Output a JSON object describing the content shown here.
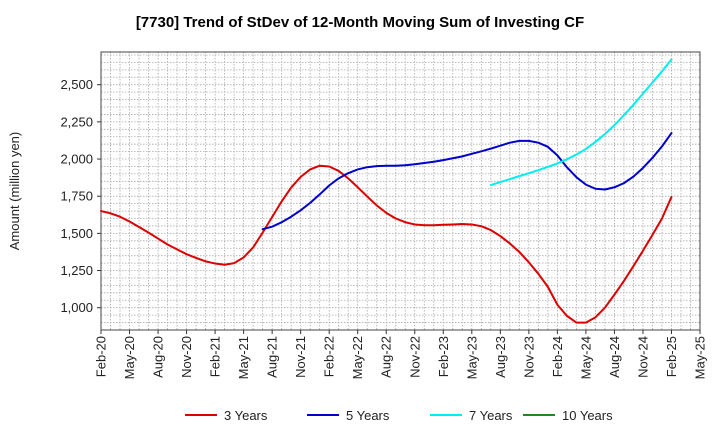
{
  "chart_data": {
    "type": "line",
    "title": "[7730]  Trend of StDev of 12-Month Moving Sum of Investing CF",
    "ylabel": "Amount (million yen)",
    "xlabel": "",
    "ylim": [
      850,
      2720
    ],
    "yticks": [
      1000,
      1250,
      1500,
      1750,
      2000,
      2250,
      2500
    ],
    "ytick_labels": [
      "1,000",
      "1,250",
      "1,500",
      "1,750",
      "2,000",
      "2,250",
      "2,500"
    ],
    "x_start": "Feb-20",
    "x_end": "May-25",
    "xticks": [
      "Feb-20",
      "May-20",
      "Aug-20",
      "Nov-20",
      "Feb-21",
      "May-21",
      "Aug-21",
      "Nov-21",
      "Feb-22",
      "May-22",
      "Aug-22",
      "Nov-22",
      "Feb-23",
      "May-23",
      "Aug-23",
      "Nov-23",
      "Feb-24",
      "May-24",
      "Aug-24",
      "Nov-24",
      "Feb-25",
      "May-25"
    ],
    "grid": true,
    "legend_position": "bottom",
    "series": [
      {
        "name": "3 Years",
        "color": "#dd0000",
        "x": [
          "Feb-20",
          "Mar-20",
          "Apr-20",
          "May-20",
          "Jun-20",
          "Jul-20",
          "Aug-20",
          "Sep-20",
          "Oct-20",
          "Nov-20",
          "Dec-20",
          "Jan-21",
          "Feb-21",
          "Mar-21",
          "Apr-21",
          "May-21",
          "Jun-21",
          "Jul-21",
          "Aug-21",
          "Sep-21",
          "Oct-21",
          "Nov-21",
          "Dec-21",
          "Jan-22",
          "Feb-22",
          "Mar-22",
          "Apr-22",
          "May-22",
          "Jun-22",
          "Jul-22",
          "Aug-22",
          "Sep-22",
          "Oct-22",
          "Nov-22",
          "Dec-22",
          "Jan-23",
          "Feb-23",
          "Mar-23",
          "Apr-23",
          "May-23",
          "Jun-23",
          "Jul-23",
          "Aug-23",
          "Sep-23",
          "Oct-23",
          "Nov-23",
          "Dec-23",
          "Jan-24",
          "Feb-24",
          "Mar-24",
          "Apr-24",
          "May-24",
          "Jun-24",
          "Jul-24",
          "Aug-24",
          "Sep-24",
          "Oct-24",
          "Nov-24",
          "Dec-24",
          "Jan-25",
          "Feb-25"
        ],
        "values": [
          1650,
          1635,
          1612,
          1580,
          1543,
          1505,
          1465,
          1425,
          1392,
          1360,
          1335,
          1312,
          1297,
          1289,
          1300,
          1338,
          1405,
          1505,
          1610,
          1715,
          1808,
          1880,
          1930,
          1955,
          1950,
          1920,
          1870,
          1810,
          1748,
          1688,
          1638,
          1600,
          1575,
          1560,
          1555,
          1555,
          1558,
          1560,
          1563,
          1560,
          1548,
          1522,
          1482,
          1432,
          1375,
          1305,
          1228,
          1140,
          1020,
          945,
          900,
          900,
          935,
          1000,
          1088,
          1180,
          1280,
          1383,
          1490,
          1600,
          1745
        ]
      },
      {
        "name": "5 Years",
        "color": "#0000cc",
        "x": [
          "Jul-21",
          "Aug-21",
          "Sep-21",
          "Oct-21",
          "Nov-21",
          "Dec-21",
          "Jan-22",
          "Feb-22",
          "Mar-22",
          "Apr-22",
          "May-22",
          "Jun-22",
          "Jul-22",
          "Aug-22",
          "Sep-22",
          "Oct-22",
          "Nov-22",
          "Dec-22",
          "Jan-23",
          "Feb-23",
          "Mar-23",
          "Apr-23",
          "May-23",
          "Jun-23",
          "Jul-23",
          "Aug-23",
          "Sep-23",
          "Oct-23",
          "Nov-23",
          "Dec-23",
          "Jan-24",
          "Feb-24",
          "Mar-24",
          "Apr-24",
          "May-24",
          "Jun-24",
          "Jul-24",
          "Aug-24",
          "Sep-24",
          "Oct-24",
          "Nov-24",
          "Dec-24",
          "Jan-25",
          "Feb-25"
        ],
        "values": [
          1528,
          1545,
          1575,
          1612,
          1655,
          1705,
          1762,
          1822,
          1870,
          1905,
          1930,
          1945,
          1952,
          1955,
          1955,
          1958,
          1965,
          1973,
          1982,
          1993,
          2005,
          2018,
          2035,
          2052,
          2070,
          2090,
          2110,
          2122,
          2122,
          2110,
          2082,
          2025,
          1945,
          1878,
          1828,
          1800,
          1795,
          1810,
          1838,
          1882,
          1940,
          2008,
          2085,
          2175
        ]
      },
      {
        "name": "7 Years",
        "color": "#00eeee",
        "x": [
          "Jul-23",
          "Aug-23",
          "Sep-23",
          "Oct-23",
          "Nov-23",
          "Dec-23",
          "Jan-24",
          "Feb-24",
          "Mar-24",
          "Apr-24",
          "May-24",
          "Jun-24",
          "Jul-24",
          "Aug-24",
          "Sep-24",
          "Oct-24",
          "Nov-24",
          "Dec-24",
          "Jan-25",
          "Feb-25"
        ],
        "values": [
          1825,
          1845,
          1865,
          1885,
          1905,
          1925,
          1948,
          1970,
          1998,
          2030,
          2068,
          2115,
          2168,
          2228,
          2295,
          2365,
          2440,
          2515,
          2590,
          2670
        ]
      },
      {
        "name": "10 Years",
        "color": "#228822",
        "x": [],
        "values": []
      }
    ]
  }
}
